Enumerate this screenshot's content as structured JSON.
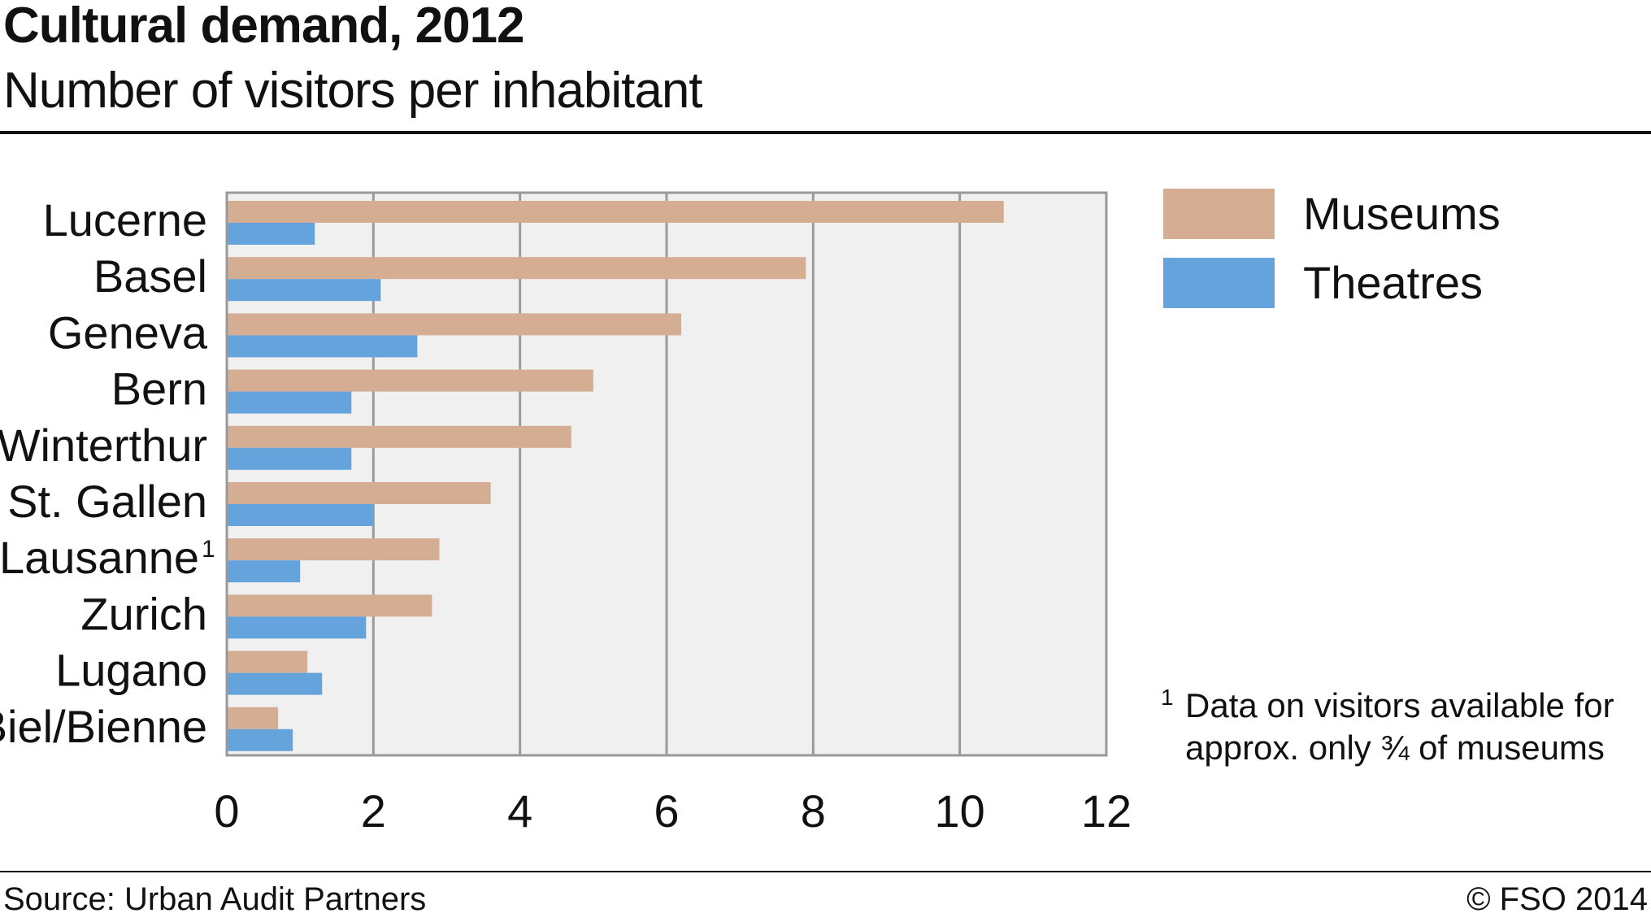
{
  "header": {
    "title": "Cultural demand, 2012",
    "subtitle": "Number of visitors per inhabitant"
  },
  "colors": {
    "museums": "#d4ad92",
    "theatres": "#65a3dd",
    "plot_bg": "#f0f0f0",
    "grid": "#9a9a9a"
  },
  "chart_data": {
    "type": "bar",
    "orientation": "horizontal",
    "title": "Cultural demand, 2012",
    "subtitle": "Number of visitors per inhabitant",
    "categories": [
      "Lucerne",
      "Basel",
      "Geneva",
      "Bern",
      "Winterthur",
      "St. Gallen",
      "Lausanne",
      "Zurich",
      "Lugano",
      "Biel/Bienne"
    ],
    "category_marks": [
      "",
      "",
      "",
      "",
      "",
      "",
      "1",
      "",
      "",
      ""
    ],
    "series": [
      {
        "name": "Museums",
        "values": [
          10.6,
          7.9,
          6.2,
          5.0,
          4.7,
          3.6,
          2.9,
          2.8,
          1.1,
          0.7
        ]
      },
      {
        "name": "Theatres",
        "values": [
          1.2,
          2.1,
          2.6,
          1.7,
          1.7,
          2.0,
          1.0,
          1.9,
          1.3,
          0.9
        ]
      }
    ],
    "xlim": [
      0,
      12
    ],
    "xticks": [
      0,
      2,
      4,
      6,
      8,
      10,
      12
    ],
    "grid": true,
    "legend_position": "right"
  },
  "footnote": {
    "mark": "1",
    "lines": [
      "Data on visitors available for",
      "approx. only ¾ of museums"
    ]
  },
  "footer": {
    "source": "Source: Urban Audit Partners",
    "copyright": "© FSO 2014"
  }
}
